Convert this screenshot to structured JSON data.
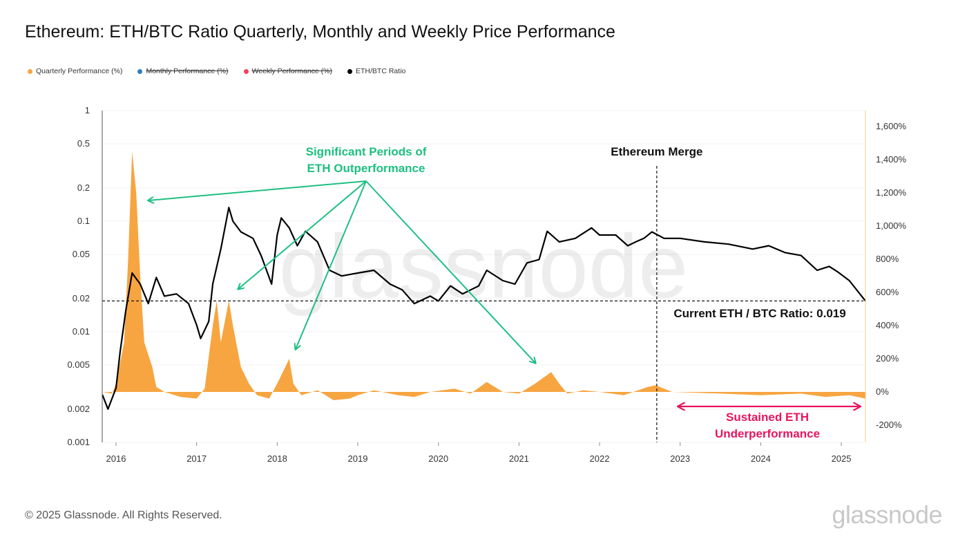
{
  "title": "Ethereum: ETH/BTC Ratio Quarterly, Monthly and Weekly Price Performance",
  "legend": [
    {
      "label": "Quarterly Performance (%)",
      "color": "#f7a541",
      "active": true
    },
    {
      "label": "Monthly Performance (%)",
      "color": "#2e7dbf",
      "active": false
    },
    {
      "label": "Weekly Performance (%)",
      "color": "#f0435f",
      "active": false
    },
    {
      "label": "ETH/BTC Ratio",
      "color": "#000000",
      "active": true
    }
  ],
  "footer": "© 2025 Glassnode. All Rights Reserved.",
  "logo": "glassnode",
  "watermark": "glassnode",
  "chart_data": {
    "type": "line",
    "x_ticks": [
      "2016",
      "2017",
      "2018",
      "2019",
      "2020",
      "2021",
      "2022",
      "2023",
      "2024",
      "2025"
    ],
    "xlim": [
      2015.83,
      2025.3
    ],
    "y_left": {
      "scale": "log",
      "range": [
        0.001,
        1
      ],
      "ticks": [
        "1",
        "0.5",
        "0.2",
        "0.1",
        "0.05",
        "0.02",
        "0.01",
        "0.005",
        "0.002",
        "0.001"
      ]
    },
    "y_right": {
      "scale": "linear",
      "range": [
        -300,
        1700
      ],
      "ticks": [
        "1,600%",
        "1,400%",
        "1,200%",
        "1,000%",
        "800%",
        "600%",
        "400%",
        "200%",
        "0%",
        "-200%"
      ]
    },
    "grid": true,
    "series": [
      {
        "name": "ETH/BTC Ratio",
        "axis": "left",
        "color": "#000000",
        "x": [
          2015.83,
          2015.9,
          2016.0,
          2016.05,
          2016.12,
          2016.2,
          2016.3,
          2016.4,
          2016.5,
          2016.6,
          2016.75,
          2016.9,
          2017.0,
          2017.05,
          2017.15,
          2017.2,
          2017.3,
          2017.4,
          2017.45,
          2017.55,
          2017.7,
          2017.8,
          2017.93,
          2018.0,
          2018.05,
          2018.15,
          2018.25,
          2018.35,
          2018.5,
          2018.65,
          2018.8,
          2019.0,
          2019.2,
          2019.4,
          2019.55,
          2019.7,
          2019.9,
          2020.0,
          2020.15,
          2020.3,
          2020.5,
          2020.6,
          2020.8,
          2020.95,
          2021.1,
          2021.25,
          2021.35,
          2021.5,
          2021.7,
          2021.9,
          2022.0,
          2022.2,
          2022.35,
          2022.45,
          2022.55,
          2022.65,
          2022.8,
          2023.0,
          2023.3,
          2023.6,
          2023.9,
          2024.1,
          2024.3,
          2024.5,
          2024.7,
          2024.85,
          2024.95,
          2025.1,
          2025.3
        ],
        "values": [
          0.0027,
          0.002,
          0.0031,
          0.0065,
          0.0154,
          0.034,
          0.027,
          0.018,
          0.031,
          0.021,
          0.022,
          0.018,
          0.0115,
          0.0087,
          0.0124,
          0.027,
          0.056,
          0.133,
          0.1,
          0.08,
          0.07,
          0.049,
          0.027,
          0.075,
          0.107,
          0.087,
          0.06,
          0.081,
          0.065,
          0.036,
          0.032,
          0.034,
          0.036,
          0.027,
          0.024,
          0.018,
          0.021,
          0.019,
          0.026,
          0.022,
          0.026,
          0.036,
          0.029,
          0.027,
          0.042,
          0.045,
          0.081,
          0.065,
          0.07,
          0.087,
          0.075,
          0.075,
          0.06,
          0.065,
          0.07,
          0.08,
          0.07,
          0.07,
          0.065,
          0.062,
          0.056,
          0.06,
          0.052,
          0.049,
          0.036,
          0.039,
          0.035,
          0.029,
          0.019
        ]
      },
      {
        "name": "Quarterly Performance (%)",
        "axis": "right",
        "color": "#f7a541",
        "type": "area",
        "x": [
          2015.83,
          2015.95,
          2016.0,
          2016.1,
          2016.15,
          2016.2,
          2016.25,
          2016.3,
          2016.35,
          2016.45,
          2016.5,
          2016.6,
          2016.8,
          2017.0,
          2017.1,
          2017.2,
          2017.25,
          2017.3,
          2017.4,
          2017.45,
          2017.55,
          2017.65,
          2017.75,
          2017.9,
          2018.0,
          2018.1,
          2018.15,
          2018.2,
          2018.3,
          2018.5,
          2018.7,
          2018.9,
          2019.0,
          2019.2,
          2019.5,
          2019.7,
          2019.9,
          2020.2,
          2020.4,
          2020.6,
          2020.8,
          2021.0,
          2021.2,
          2021.4,
          2021.5,
          2021.6,
          2021.8,
          2022.0,
          2022.3,
          2022.6,
          2022.7,
          2022.9,
          2023.5,
          2024.0,
          2024.5,
          2024.8,
          2025.1,
          2025.3
        ],
        "values": [
          0,
          -10,
          50,
          300,
          800,
          1450,
          1200,
          700,
          300,
          150,
          30,
          0,
          -30,
          -40,
          20,
          400,
          550,
          300,
          550,
          400,
          150,
          50,
          -20,
          -40,
          50,
          150,
          200,
          50,
          -20,
          10,
          -50,
          -40,
          -20,
          10,
          -20,
          -30,
          0,
          20,
          -10,
          60,
          0,
          -10,
          50,
          120,
          50,
          -10,
          10,
          0,
          -20,
          30,
          40,
          0,
          -10,
          -20,
          -10,
          -30,
          -20,
          -40
        ]
      }
    ],
    "reference_lines": [
      {
        "type": "horizontal",
        "axis": "left",
        "value": 0.019
      },
      {
        "type": "vertical",
        "x": 2022.71,
        "label": "Ethereum Merge"
      }
    ],
    "annotations": [
      {
        "text_lines": [
          "Significant Periods of",
          "ETH Outperformance"
        ],
        "color": "#1dbf82"
      },
      {
        "text": "Current ETH / BTC Ratio: 0.019",
        "color": "#111111"
      },
      {
        "text_lines": [
          "Sustained ETH",
          "Underperformance"
        ],
        "color": "#e8145f"
      }
    ]
  }
}
